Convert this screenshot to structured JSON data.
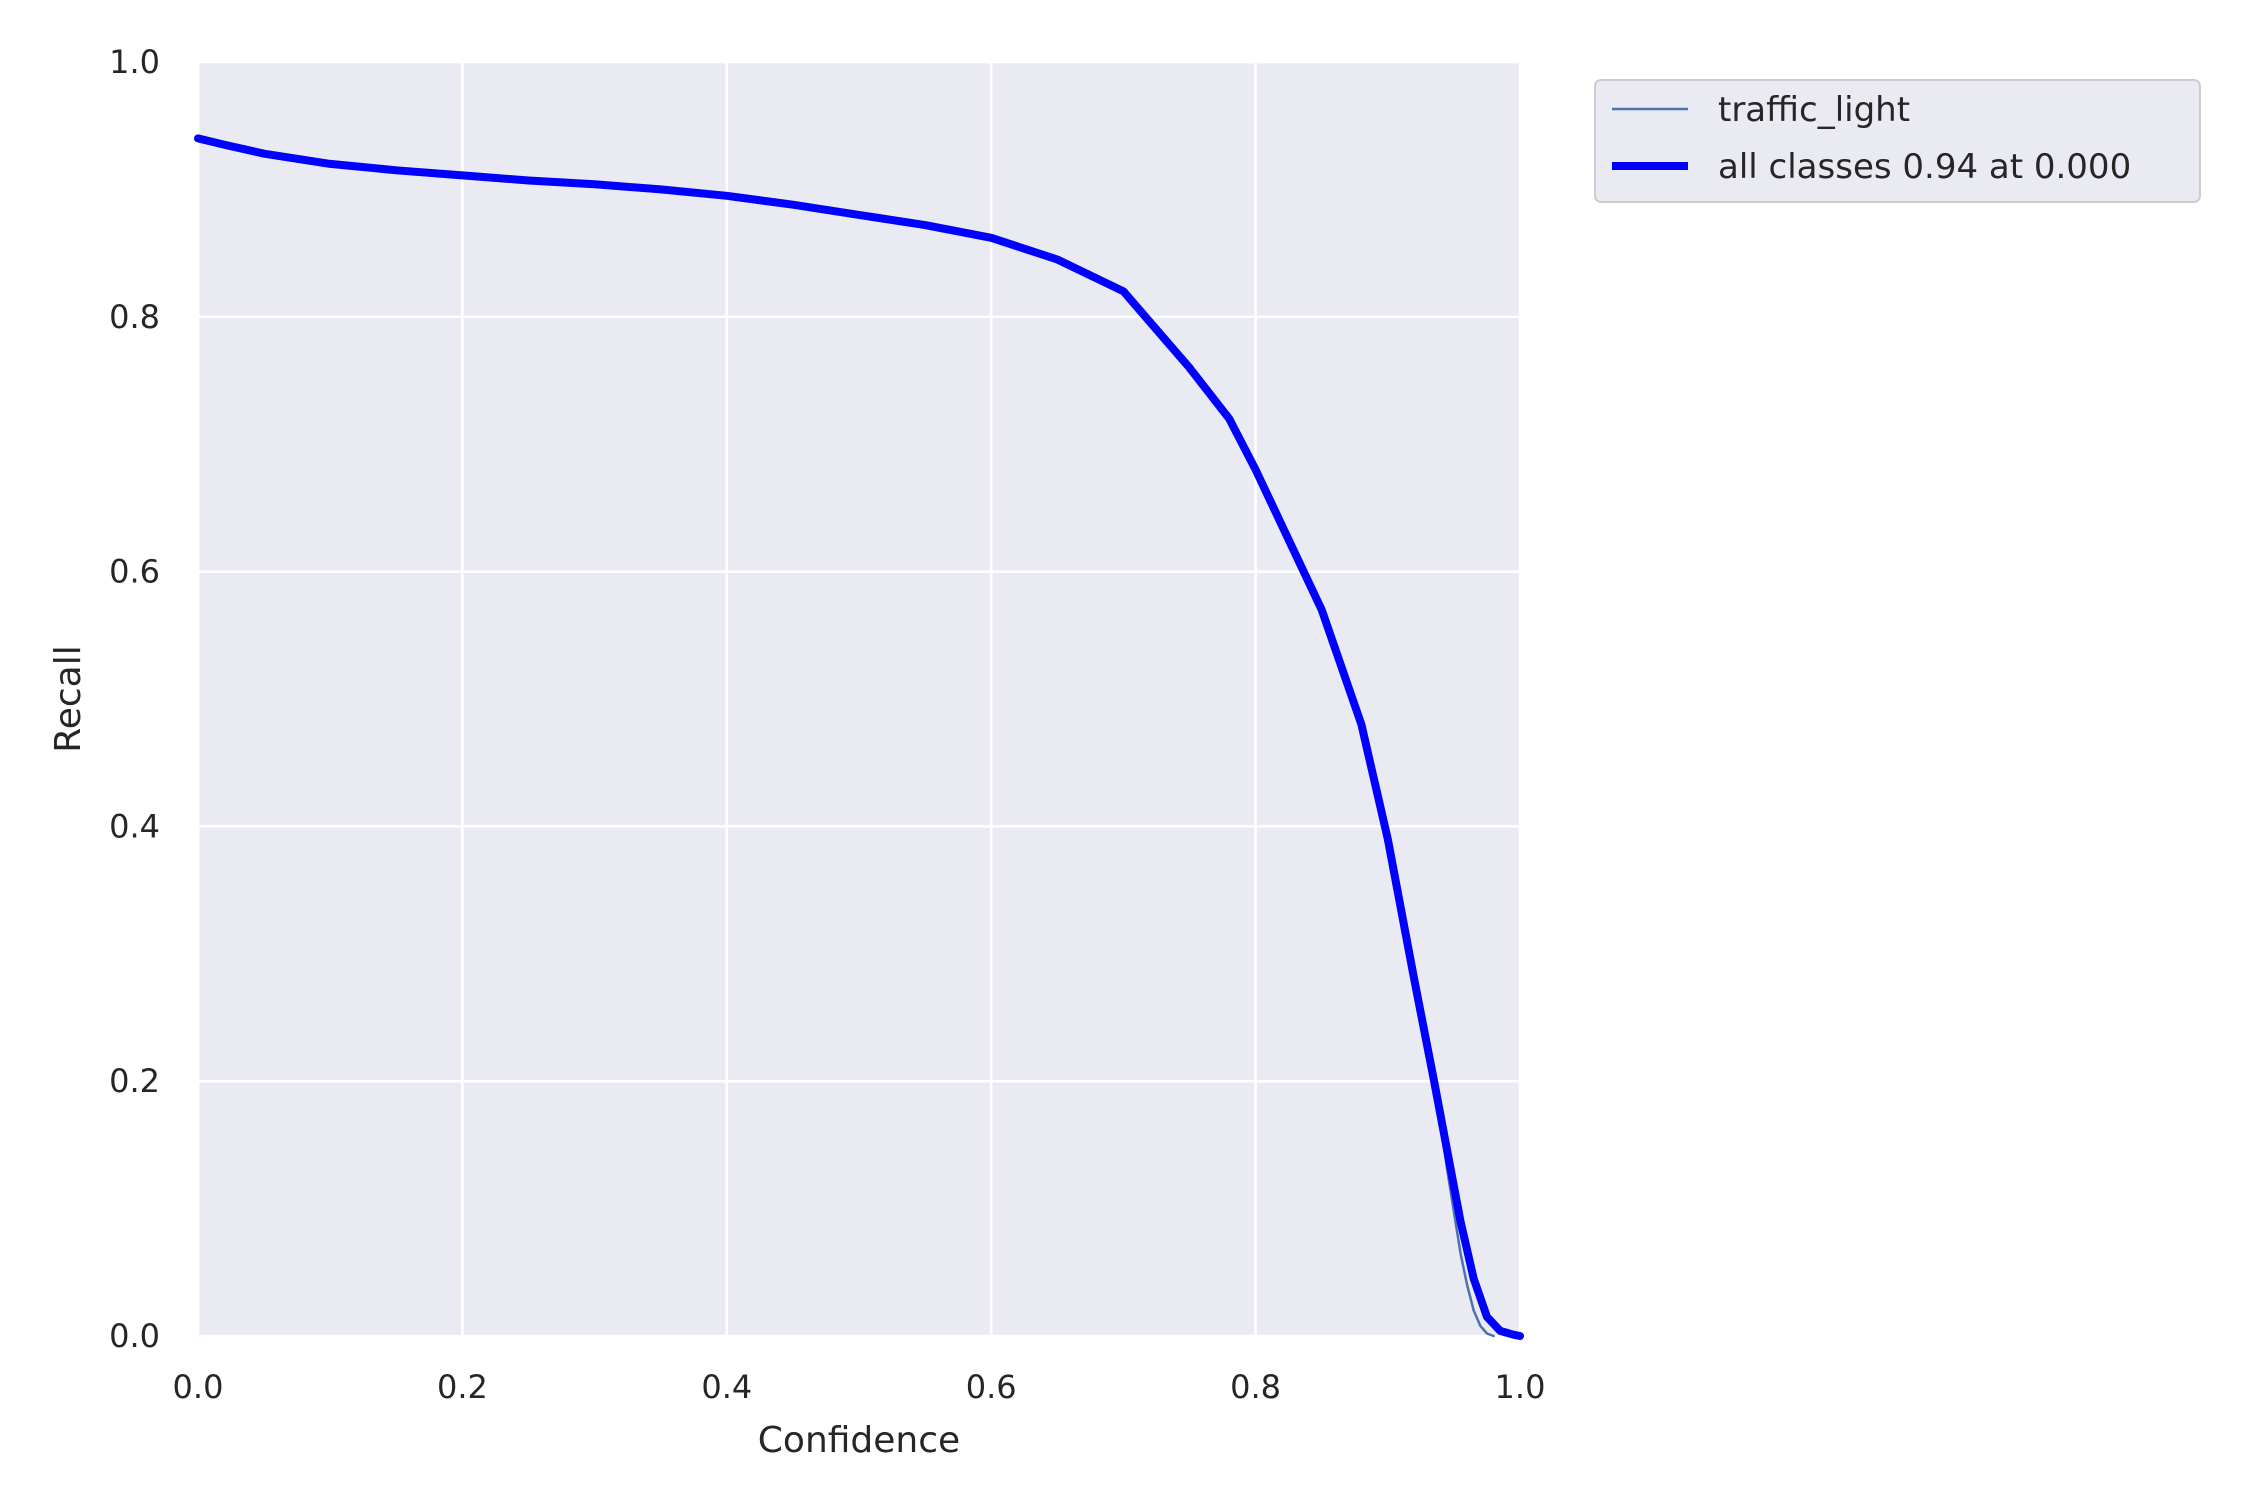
{
  "chart_data": {
    "type": "line",
    "xlabel": "Confidence",
    "ylabel": "Recall",
    "xlim": [
      0.0,
      1.0
    ],
    "ylim": [
      0.0,
      1.0
    ],
    "x_ticks": [
      "0.0",
      "0.2",
      "0.4",
      "0.6",
      "0.8",
      "1.0"
    ],
    "y_ticks": [
      "0.0",
      "0.2",
      "0.4",
      "0.6",
      "0.8",
      "1.0"
    ],
    "grid": true,
    "legend": "outside-top-right",
    "series": [
      {
        "name": "traffic_light",
        "color": "#4c72b0",
        "x": [
          0.0,
          0.02,
          0.05,
          0.1,
          0.15,
          0.2,
          0.25,
          0.3,
          0.35,
          0.4,
          0.45,
          0.5,
          0.55,
          0.6,
          0.65,
          0.7,
          0.75,
          0.78,
          0.8,
          0.85,
          0.88,
          0.9,
          0.92,
          0.935,
          0.945,
          0.955,
          0.96,
          0.965,
          0.97,
          0.975,
          0.98
        ],
        "y": [
          0.94,
          0.935,
          0.928,
          0.92,
          0.915,
          0.911,
          0.907,
          0.904,
          0.9,
          0.895,
          0.888,
          0.88,
          0.872,
          0.862,
          0.845,
          0.82,
          0.76,
          0.72,
          0.68,
          0.57,
          0.48,
          0.39,
          0.28,
          0.2,
          0.13,
          0.065,
          0.04,
          0.02,
          0.008,
          0.002,
          0.0
        ]
      },
      {
        "name": "all classes 0.94 at 0.000",
        "color": "#0000ff",
        "x": [
          0.0,
          0.02,
          0.05,
          0.1,
          0.15,
          0.2,
          0.25,
          0.3,
          0.35,
          0.4,
          0.45,
          0.5,
          0.55,
          0.6,
          0.65,
          0.7,
          0.75,
          0.78,
          0.8,
          0.85,
          0.88,
          0.9,
          0.92,
          0.935,
          0.945,
          0.955,
          0.965,
          0.975,
          0.985,
          0.995,
          1.0
        ],
        "y": [
          0.94,
          0.935,
          0.928,
          0.92,
          0.915,
          0.911,
          0.907,
          0.904,
          0.9,
          0.895,
          0.888,
          0.88,
          0.872,
          0.862,
          0.845,
          0.82,
          0.76,
          0.72,
          0.68,
          0.57,
          0.48,
          0.39,
          0.28,
          0.2,
          0.145,
          0.09,
          0.045,
          0.015,
          0.004,
          0.001,
          0.0
        ]
      }
    ]
  }
}
